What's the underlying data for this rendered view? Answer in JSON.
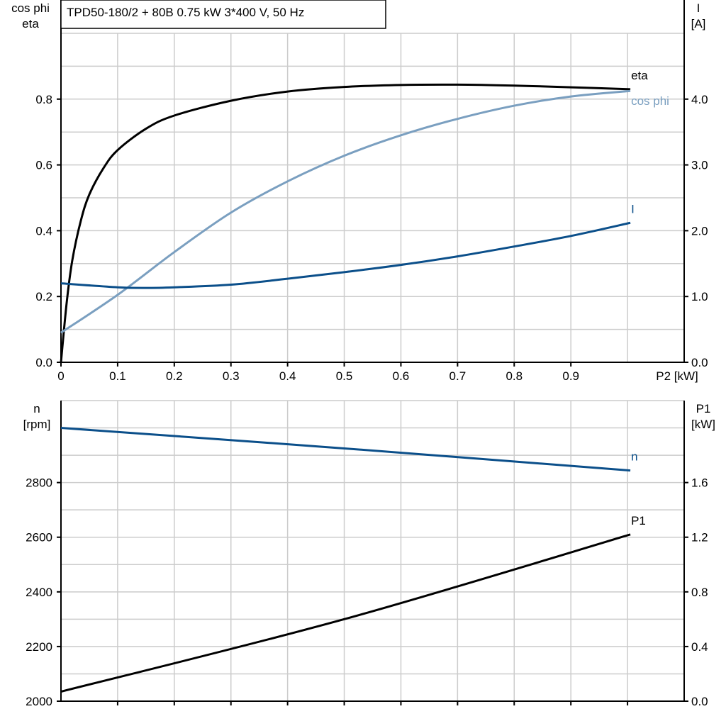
{
  "title": "TPD50-180/2 + 80B   0.75 kW   3*400 V, 50 Hz",
  "colors": {
    "eta": "#000000",
    "cos_phi": "#7a9fc0",
    "I": "#0b4f8a",
    "n": "#0b4f8a",
    "P1": "#000000",
    "grid": "#cccccc"
  },
  "chart_data": [
    {
      "type": "line",
      "xlabel": "P2 [kW]",
      "xlim": [
        0,
        1.1
      ],
      "x_ticks": [
        "0",
        "0.1",
        "0.2",
        "0.3",
        "0.4",
        "0.5",
        "0.6",
        "0.7",
        "0.8",
        "0.9"
      ],
      "ylabel_left": [
        "cos phi",
        "eta"
      ],
      "ylim_left": [
        0,
        1.0
      ],
      "y_ticks_left": [
        "0.0",
        "0.2",
        "0.4",
        "0.6",
        "0.8"
      ],
      "ylabel_right": [
        "I",
        "[A]"
      ],
      "ylim_right": [
        0,
        5.0
      ],
      "y_ticks_right": [
        "0.0",
        "1.0",
        "2.0",
        "3.0",
        "4.0"
      ],
      "grid": true,
      "series": [
        {
          "name": "eta",
          "axis": "left",
          "x": [
            0,
            0.01,
            0.02,
            0.035,
            0.05,
            0.075,
            0.1,
            0.15,
            0.2,
            0.3,
            0.4,
            0.5,
            0.6,
            0.7,
            0.8,
            0.9,
            1.005
          ],
          "y": [
            0,
            0.18,
            0.31,
            0.43,
            0.51,
            0.59,
            0.645,
            0.71,
            0.75,
            0.795,
            0.823,
            0.837,
            0.843,
            0.844,
            0.841,
            0.836,
            0.83
          ]
        },
        {
          "name": "cos phi",
          "axis": "left",
          "x": [
            0,
            0.1,
            0.2,
            0.3,
            0.4,
            0.5,
            0.6,
            0.7,
            0.8,
            0.9,
            1.005
          ],
          "y": [
            0.09,
            0.205,
            0.335,
            0.455,
            0.55,
            0.628,
            0.69,
            0.74,
            0.78,
            0.808,
            0.825
          ]
        },
        {
          "name": "I",
          "axis": "right",
          "x": [
            0,
            0.1,
            0.15,
            0.2,
            0.3,
            0.4,
            0.5,
            0.6,
            0.7,
            0.8,
            0.9,
            1.005
          ],
          "y": [
            1.2,
            1.14,
            1.13,
            1.14,
            1.18,
            1.27,
            1.37,
            1.48,
            1.61,
            1.76,
            1.92,
            2.12
          ]
        }
      ]
    },
    {
      "type": "line",
      "xlim": [
        0,
        1.1
      ],
      "ylabel_left": [
        "n",
        "[rpm]"
      ],
      "ylim_left": [
        2000,
        3100
      ],
      "y_ticks_left": [
        "2000",
        "2200",
        "2400",
        "2600",
        "2800"
      ],
      "ylabel_right": [
        "P1",
        "[kW]"
      ],
      "ylim_right": [
        0,
        2.2
      ],
      "y_ticks_right": [
        "0.0",
        "0.4",
        "0.8",
        "1.2",
        "1.6"
      ],
      "grid": true,
      "series": [
        {
          "name": "n",
          "axis": "left",
          "x": [
            0,
            0.5,
            1.005
          ],
          "y": [
            3000,
            2925,
            2844
          ]
        },
        {
          "name": "P1",
          "axis": "right",
          "x": [
            0,
            0.5,
            1.005
          ],
          "y": [
            0.07,
            0.6,
            1.22
          ]
        }
      ]
    }
  ]
}
